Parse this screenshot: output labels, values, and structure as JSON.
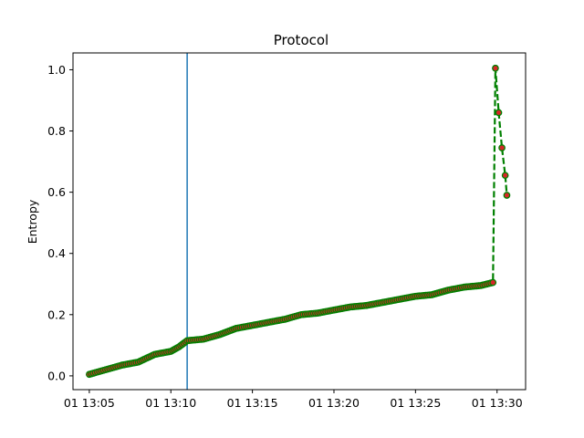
{
  "chart_data": {
    "type": "line",
    "title": "Protocol",
    "xlabel": "",
    "ylabel": "Entropy",
    "x_tick_labels": [
      "01 13:05",
      "01 13:10",
      "01 13:15",
      "01 13:20",
      "01 13:25",
      "01 13:30"
    ],
    "y_tick_labels": [
      "0.0",
      "0.2",
      "0.4",
      "0.6",
      "0.8",
      "1.0"
    ],
    "xlim": [
      "13:04:00",
      "13:31:45"
    ],
    "ylim": [
      -0.045,
      1.055
    ],
    "x_ticks": [
      "13:05:00",
      "13:10:00",
      "13:15:00",
      "13:20:00",
      "13:25:00",
      "13:30:00"
    ],
    "y_ticks": [
      0.0,
      0.2,
      0.4,
      0.6,
      0.8,
      1.0
    ],
    "vertical_line_x": "13:11:00",
    "series": [
      {
        "line_style": "dashed",
        "line_color": "#008000",
        "marker_color": "#d62728",
        "marker_edge_color": "#008000",
        "x": [
          "13:05:00",
          "13:06:00",
          "13:07:00",
          "13:08:00",
          "13:09:00",
          "13:10:00",
          "13:10:30",
          "13:11:00",
          "13:12:00",
          "13:13:00",
          "13:14:00",
          "13:15:00",
          "13:16:00",
          "13:17:00",
          "13:18:00",
          "13:19:00",
          "13:20:00",
          "13:21:00",
          "13:22:00",
          "13:23:00",
          "13:24:00",
          "13:25:00",
          "13:26:00",
          "13:27:00",
          "13:28:00",
          "13:29:00",
          "13:29:45",
          "13:29:54",
          "13:30:06",
          "13:30:18",
          "13:30:30",
          "13:30:36"
        ],
        "values": [
          0.005,
          0.02,
          0.035,
          0.045,
          0.07,
          0.08,
          0.095,
          0.115,
          0.12,
          0.135,
          0.155,
          0.165,
          0.175,
          0.185,
          0.2,
          0.205,
          0.215,
          0.225,
          0.23,
          0.24,
          0.25,
          0.26,
          0.265,
          0.28,
          0.29,
          0.295,
          0.305,
          1.005,
          0.86,
          0.745,
          0.655,
          0.59
        ]
      }
    ]
  }
}
